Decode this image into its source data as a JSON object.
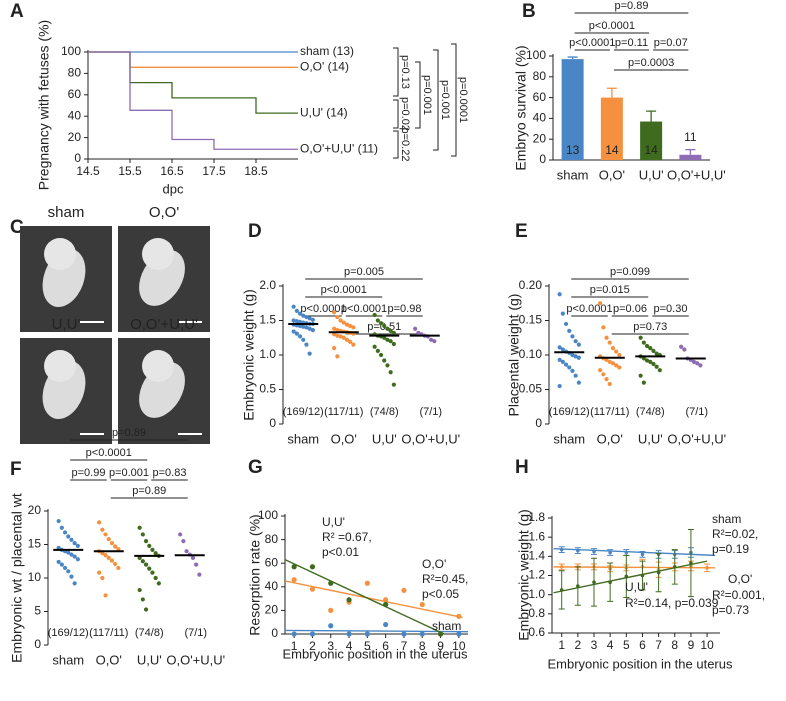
{
  "chart_data": [
    {
      "panel_label": "A",
      "type": "step",
      "y_label": "Pregnancy with fetuses (%)",
      "x_label": "dpc",
      "xlim": [
        14.5,
        19.5
      ],
      "xticks": [
        14.5,
        15.5,
        16.5,
        17.5,
        18.5
      ],
      "ylim": [
        0,
        100
      ],
      "yticks": [
        0,
        20,
        40,
        60,
        80,
        100
      ],
      "series": [
        {
          "name": "sham (13)",
          "color": "#4a86c5",
          "x": [
            14.5,
            19.5
          ],
          "values": [
            100,
            100
          ]
        },
        {
          "name": "O,O' (14)",
          "color": "#f5913e",
          "x": [
            14.5,
            15.5,
            19.5
          ],
          "values": [
            100,
            85.7,
            85.7
          ]
        },
        {
          "name": "U,U' (14)",
          "color": "#3f6b1f",
          "x": [
            14.5,
            15.5,
            16.5,
            18.5,
            19.5
          ],
          "values": [
            100,
            71.4,
            57.1,
            42.9,
            42.9
          ]
        },
        {
          "name": "O,O'+U,U' (11)",
          "color": "#8e6bb5",
          "x": [
            14.5,
            15.5,
            16.5,
            17.5,
            19.5
          ],
          "values": [
            100,
            45.5,
            18.2,
            9.1,
            9.1
          ]
        }
      ],
      "comparisons": [
        "p=0.13",
        "p=0.02",
        "p=0.22",
        "p=0.001",
        "p=0.001",
        "p=0.0001"
      ]
    },
    {
      "panel_label": "B",
      "type": "bar",
      "y_label": "Embryo survival (%)",
      "categories": [
        "sham",
        "O,O'",
        "U,U'",
        "O,O'+U,U'"
      ],
      "colors": [
        "#4a86c5",
        "#f5913e",
        "#3f6b1f",
        "#8e6bb5"
      ],
      "values": [
        97,
        60,
        37,
        5
      ],
      "errors": [
        2,
        9,
        10,
        5
      ],
      "n": [
        13,
        14,
        14,
        11
      ],
      "ylim": [
        0,
        100
      ],
      "yticks": [
        0,
        20,
        40,
        60,
        80,
        100
      ],
      "comparisons": [
        "p=0.89",
        "p<0.0001",
        "p<0.0001",
        "p=0.11",
        "p=0.07",
        "p=0.0003"
      ]
    },
    {
      "panel_label": "C",
      "type": "image_grid",
      "cells": [
        {
          "label": "sham",
          "color": "#4a86c5"
        },
        {
          "label": "O,O'",
          "color": "#f5913e"
        },
        {
          "label": "U,U'",
          "color": "#3f6b1f"
        },
        {
          "label": "O,O'+U,U'",
          "color": "#8e6bb5"
        }
      ]
    },
    {
      "panel_label": "D",
      "type": "dot",
      "y_label": "Embryonic weight (g)",
      "categories": [
        "sham",
        "O,O'",
        "U,U'",
        "O,O'+U,U'"
      ],
      "colors": [
        "#4a86c5",
        "#f5913e",
        "#3f6b1f",
        "#8e6bb5"
      ],
      "means": [
        1.45,
        1.33,
        1.28,
        1.28
      ],
      "points": [
        [
          1.7,
          1.64,
          1.6,
          1.57,
          1.55,
          1.53,
          1.51,
          1.5,
          1.49,
          1.48,
          1.47,
          1.46,
          1.45,
          1.45,
          1.44,
          1.43,
          1.42,
          1.41,
          1.4,
          1.38,
          1.36,
          1.34,
          1.31,
          1.27,
          1.22,
          1.15,
          1.02
        ],
        [
          1.62,
          1.55,
          1.5,
          1.47,
          1.44,
          1.42,
          1.4,
          1.38,
          1.36,
          1.35,
          1.34,
          1.33,
          1.32,
          1.31,
          1.3,
          1.28,
          1.27,
          1.25,
          1.22,
          1.19,
          1.15,
          1.1,
          0.98
        ],
        [
          1.58,
          1.5,
          1.46,
          1.42,
          1.38,
          1.35,
          1.32,
          1.3,
          1.28,
          1.27,
          1.25,
          1.22,
          1.2,
          1.16,
          1.12,
          1.06,
          1.0,
          0.92,
          0.85,
          0.75,
          0.57
        ],
        [
          1.38,
          1.32,
          1.3,
          1.28,
          1.27,
          1.22,
          1.2
        ]
      ],
      "n_labels": [
        "(169/12)",
        "(117/11)",
        "(74/8)",
        "(7/1)"
      ],
      "ylim": [
        0,
        2
      ],
      "yticks": [
        0,
        0.5,
        {
          "value": 1,
          "label": "1.0"
        },
        1.5,
        {
          "value": 2,
          "label": "2.0"
        }
      ],
      "comparisons": [
        "p=0.005",
        "p<0.0001",
        "p<0.0001",
        "p<0.0001",
        "p=0.98",
        "p=0.51"
      ]
    },
    {
      "panel_label": "E",
      "type": "dot",
      "y_label": "Placental weight (g)",
      "categories": [
        "sham",
        "O,O'",
        "U,U'",
        "O,O'+U,U'"
      ],
      "colors": [
        "#4a86c5",
        "#f5913e",
        "#3f6b1f",
        "#8e6bb5"
      ],
      "means": [
        0.104,
        0.096,
        0.098,
        0.095
      ],
      "points": [
        [
          0.188,
          0.16,
          0.145,
          0.135,
          0.127,
          0.12,
          0.115,
          0.111,
          0.108,
          0.105,
          0.103,
          0.1,
          0.098,
          0.096,
          0.093,
          0.09,
          0.086,
          0.082,
          0.077,
          0.07,
          0.06,
          0.055
        ],
        [
          0.175,
          0.14,
          0.125,
          0.118,
          0.11,
          0.105,
          0.1,
          0.098,
          0.095,
          0.093,
          0.09,
          0.088,
          0.085,
          0.082,
          0.078,
          0.072,
          0.065,
          0.058
        ],
        [
          0.125,
          0.118,
          0.113,
          0.11,
          0.106,
          0.102,
          0.1,
          0.098,
          0.095,
          0.092,
          0.09,
          0.087,
          0.083,
          0.078,
          0.07,
          0.06
        ],
        [
          0.112,
          0.108,
          0.095,
          0.093,
          0.09,
          0.088,
          0.085
        ]
      ],
      "n_labels": [
        "(169/12)",
        "(117/11)",
        "(74/8)",
        "(7/1)"
      ],
      "ylim": [
        0,
        0.2
      ],
      "yticks": [
        0,
        0.05,
        {
          "value": 0.1,
          "label": "0.10"
        },
        0.15,
        {
          "value": 0.2,
          "label": "0.20"
        }
      ],
      "comparisons": [
        "p=0.099",
        "p=0.015",
        "p<0.0001",
        "p=0.06",
        "p=0.30",
        "p=0.73"
      ]
    },
    {
      "panel_label": "F",
      "type": "dot",
      "y_label": "Embryonic wt / placental wt",
      "categories": [
        "sham",
        "O,O'",
        "U,U'",
        "O,O'+U,U'"
      ],
      "colors": [
        "#4a86c5",
        "#f5913e",
        "#3f6b1f",
        "#8e6bb5"
      ],
      "means": [
        14.2,
        14.0,
        13.3,
        13.4
      ],
      "points": [
        [
          18.5,
          17.5,
          16.8,
          16.2,
          15.7,
          15.2,
          14.8,
          14.5,
          14.2,
          14.0,
          13.8,
          13.5,
          13.2,
          12.8,
          12.4,
          12.0,
          11.5,
          11.0,
          10.2,
          9.2
        ],
        [
          18.3,
          17.2,
          16.5,
          15.8,
          15.2,
          14.7,
          14.3,
          14.0,
          13.7,
          13.4,
          13.0,
          12.6,
          12.1,
          11.5,
          10.8,
          10.0,
          7.4
        ],
        [
          17.5,
          16.5,
          15.5,
          14.8,
          14.2,
          13.7,
          13.3,
          13.0,
          12.5,
          12.0,
          11.4,
          10.8,
          10.0,
          9.2,
          8.2,
          6.8,
          5.3
        ],
        [
          16.5,
          15.5,
          14.0,
          13.5,
          13.0,
          12.0,
          10.5
        ]
      ],
      "n_labels": [
        "(169/12)",
        "(117/11)",
        "(74/8)",
        "(7/1)"
      ],
      "ylim": [
        0,
        20
      ],
      "yticks": [
        0,
        5,
        10,
        15,
        20
      ],
      "comparisons": [
        "p=0.89",
        "p<0.0001",
        "p=0.99",
        "p=0.001",
        "p=0.83",
        "p=0.89"
      ]
    },
    {
      "panel_label": "G",
      "type": "scatter_fit",
      "y_label": "Resorption rate (%)",
      "x_label": "Embryonic position in the uterus",
      "xlim": [
        0.5,
        10.5
      ],
      "xticks": [
        1,
        2,
        3,
        4,
        5,
        6,
        7,
        8,
        9,
        10
      ],
      "ylim": [
        0,
        100
      ],
      "yticks": [
        0,
        20,
        40,
        60,
        80,
        100
      ],
      "series": [
        {
          "color": "#4a86c5",
          "x": [
            1,
            2,
            3,
            4,
            5,
            6,
            7,
            8,
            9,
            10
          ],
          "values": [
            0,
            0,
            7,
            0,
            0,
            8,
            0,
            0,
            0,
            0
          ],
          "fit_x": [
            0.5,
            10.5
          ],
          "fit_values": [
            3,
            2
          ]
        },
        {
          "color": "#f5913e",
          "x": [
            1,
            2,
            3,
            4,
            5,
            6,
            7,
            8,
            9,
            10
          ],
          "values": [
            46,
            38,
            20,
            27,
            43,
            29,
            37,
            25,
            0,
            15
          ],
          "fit_x": [
            0.5,
            10.2
          ],
          "fit_values": [
            45,
            14
          ]
        },
        {
          "color": "#3f6b1f",
          "x": [
            1,
            2,
            3,
            4,
            6,
            9
          ],
          "values": [
            57,
            57,
            43,
            29,
            25,
            0
          ],
          "fit_x": [
            0.5,
            9.2
          ],
          "fit_values": [
            63,
            0
          ]
        }
      ],
      "annotations": [
        {
          "text": "U,U'",
          "color": "#3f6b1f"
        },
        {
          "text": "R² =0.67,",
          "color": "#3f6b1f"
        },
        {
          "text": "p<0.01",
          "color": "#3f6b1f"
        },
        {
          "text": "O,O'",
          "color": "#f5913e"
        },
        {
          "text": "R²=0.45,",
          "color": "#f5913e"
        },
        {
          "text": "p<0.05",
          "color": "#f5913e"
        },
        {
          "text": "sham",
          "color": "#4a86c5"
        }
      ]
    },
    {
      "panel_label": "H",
      "type": "errorbar_fit",
      "y_label": "Embryonic weight (g)",
      "x_label": "Embryonic position in the uterus",
      "xlim": [
        0.4,
        10.8
      ],
      "xticks": [
        1,
        2,
        3,
        4,
        5,
        6,
        7,
        8,
        9,
        10
      ],
      "ylim": [
        0.6,
        1.8
      ],
      "yticks": [
        0.6,
        0.8,
        {
          "value": 1,
          "label": "1.0"
        },
        1.2,
        1.4,
        1.6,
        1.8
      ],
      "series": [
        {
          "color": "#4a86c5",
          "x": [
            1,
            2,
            3,
            4,
            5,
            6,
            7,
            8,
            9
          ],
          "values": [
            1.47,
            1.46,
            1.45,
            1.44,
            1.44,
            1.42,
            1.42,
            1.42,
            1.44
          ],
          "errors": [
            0.03,
            0.03,
            0.03,
            0.03,
            0.03,
            0.03,
            0.04,
            0.04,
            0.05
          ],
          "fit_x": [
            0.5,
            10.5
          ],
          "fit_values": [
            1.48,
            1.41
          ]
        },
        {
          "color": "#f5913e",
          "x": [
            1,
            2,
            3,
            4,
            5,
            6,
            7,
            8,
            9,
            10
          ],
          "values": [
            1.29,
            1.29,
            1.29,
            1.27,
            1.28,
            1.29,
            1.26,
            1.29,
            1.3,
            1.28
          ],
          "errors": [
            0.03,
            0.03,
            0.03,
            0.03,
            0.03,
            0.08,
            0.08,
            0.04,
            0.05,
            0.04
          ],
          "fit_x": [
            0.5,
            10.5
          ],
          "fit_values": [
            1.29,
            1.28
          ]
        },
        {
          "color": "#3f6b1f",
          "x": [
            1,
            2,
            3,
            4,
            5,
            6,
            7,
            8,
            9
          ],
          "values": [
            1.05,
            1.09,
            1.13,
            1.13,
            1.19,
            1.2,
            1.23,
            1.29,
            1.33
          ],
          "errors": [
            0.2,
            0.2,
            0.25,
            0.2,
            0.22,
            0.15,
            0.2,
            0.18,
            0.35
          ],
          "fit_x": [
            0.5,
            10
          ],
          "fit_values": [
            1.02,
            1.35
          ]
        }
      ],
      "annotations": [
        {
          "text": "sham",
          "color": "#4a86c5"
        },
        {
          "text": "R²=0.02,",
          "color": "#4a86c5"
        },
        {
          "text": "p=0.19",
          "color": "#4a86c5"
        },
        {
          "text": "O,O'",
          "color": "#f5913e"
        },
        {
          "text": "R²=0.001,",
          "color": "#f5913e"
        },
        {
          "text": "p=0.73",
          "color": "#f5913e"
        },
        {
          "text": "U,U'",
          "color": "#3f6b1f"
        },
        {
          "text": "R²=0.14, p=0.039",
          "color": "#3f6b1f"
        }
      ]
    }
  ]
}
